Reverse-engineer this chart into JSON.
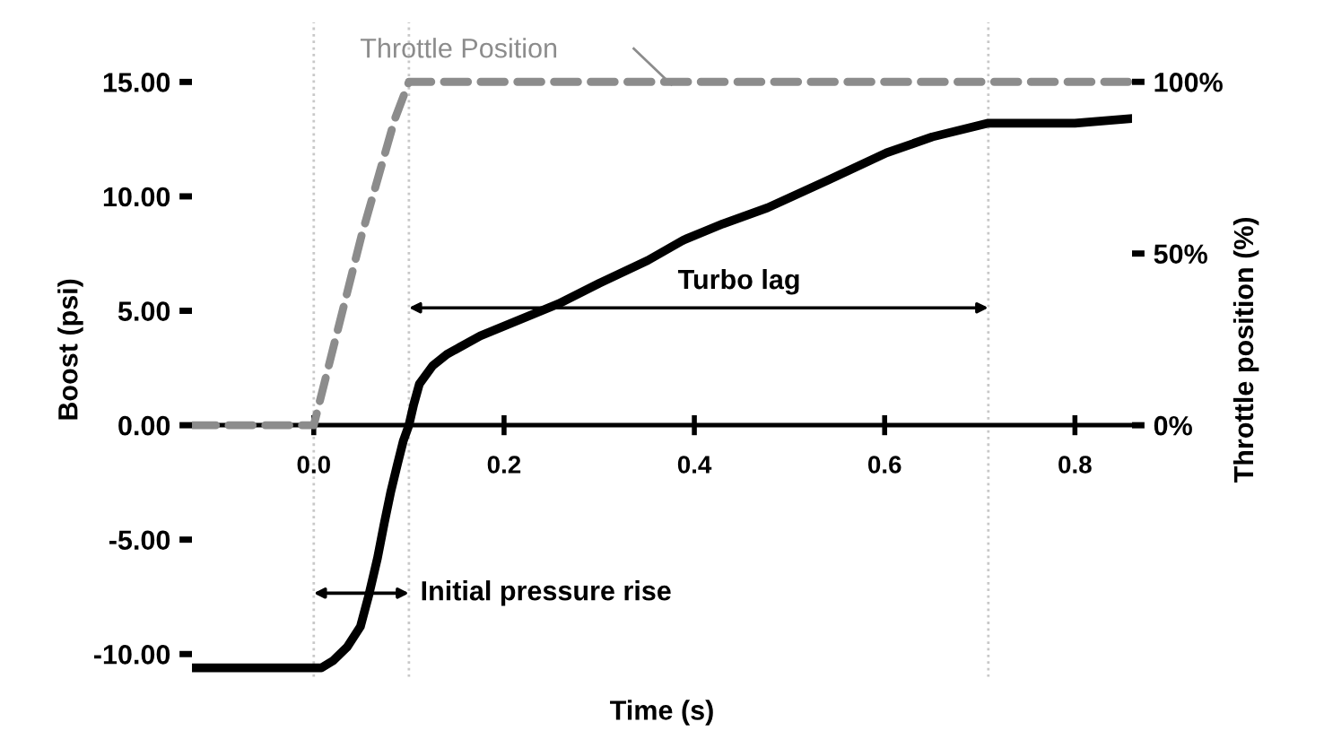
{
  "chart_data": {
    "type": "line",
    "xlabel": "Time (s)",
    "ylabel": "Boost (psi)",
    "y2label": "Throttle position (%)",
    "xlim": [
      -0.128,
      0.86
    ],
    "ylim": [
      -11.0,
      17.6
    ],
    "y2lim": [
      -73.3,
      117.3
    ],
    "xticks": [
      {
        "value": 0,
        "label": "0.0"
      },
      0.2,
      0.4,
      0.6,
      0.8
    ],
    "yticks": [
      {
        "value": -10,
        "label": "-10.00"
      },
      {
        "value": -5,
        "label": "-5.00"
      },
      {
        "value": 0,
        "label": "0.00"
      },
      {
        "value": 5,
        "label": "5.00"
      },
      {
        "value": 10,
        "label": "10.00"
      },
      {
        "value": 15,
        "label": "15.00"
      }
    ],
    "y2ticks": [
      {
        "value": 0,
        "label": "0%"
      },
      {
        "value": 50,
        "label": "50%"
      },
      {
        "value": 100,
        "label": "100%"
      }
    ],
    "grid": false,
    "series": [
      {
        "color": "#000000",
        "line_style": "solid",
        "x": [
          -0.128,
          0.008,
          0.02,
          0.035,
          0.049,
          0.058,
          0.067,
          0.074,
          0.081,
          0.088,
          0.094,
          0.1,
          0.105,
          0.111,
          0.125,
          0.14,
          0.175,
          0.21,
          0.257,
          0.3,
          0.351,
          0.389,
          0.43,
          0.477,
          0.54,
          0.602,
          0.65,
          0.709,
          0.8,
          0.86
        ],
        "values": [
          -10.6,
          -10.6,
          -10.3,
          -9.7,
          -8.8,
          -7.4,
          -5.8,
          -4.3,
          -2.9,
          -1.7,
          -0.7,
          0,
          0.9,
          1.8,
          2.6,
          3.1,
          3.9,
          4.5,
          5.3,
          6.2,
          7.2,
          8.1,
          8.8,
          9.5,
          10.7,
          11.9,
          12.6,
          13.2,
          13.2,
          13.4
        ]
      },
      {
        "color": "#8c8c8c",
        "line_style": "dashed",
        "axis": "y2",
        "x": [
          -0.128,
          0.0,
          0.05,
          0.085,
          0.1,
          0.86
        ],
        "values": [
          0,
          0,
          55,
          89,
          100,
          100
        ]
      }
    ],
    "ref_lines": [
      {
        "axis": "x",
        "value": 0.0,
        "line_style": "dotted",
        "color": "#c8c8c8"
      },
      {
        "axis": "x",
        "value": 0.1,
        "line_style": "dotted",
        "color": "#c8c8c8"
      },
      {
        "axis": "x",
        "value": 0.709,
        "line_style": "dotted",
        "color": "#c8c8c8"
      }
    ],
    "annotations": [
      "Turbo lag",
      "Initial pressure rise",
      "Throttle Position"
    ]
  }
}
